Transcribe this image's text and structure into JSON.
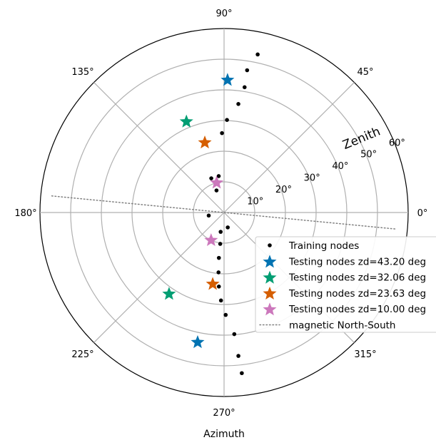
{
  "chart_data": {
    "type": "polar-scatter",
    "xlabel": "Azimuth",
    "radial_title": "Zenith",
    "radial_max": 60,
    "angular_ticks": [
      {
        "deg": 0,
        "label": "0°"
      },
      {
        "deg": 45,
        "label": "45°"
      },
      {
        "deg": 90,
        "label": "90°"
      },
      {
        "deg": 135,
        "label": "135°"
      },
      {
        "deg": 180,
        "label": "180°"
      },
      {
        "deg": 225,
        "label": "225°"
      },
      {
        "deg": 270,
        "label": "270°"
      },
      {
        "deg": 315,
        "label": "315°"
      }
    ],
    "radial_ticks": [
      {
        "value": 10,
        "label": "10°"
      },
      {
        "value": 20,
        "label": "20°"
      },
      {
        "value": 30,
        "label": "30°"
      },
      {
        "value": 40,
        "label": "40°"
      },
      {
        "value": 50,
        "label": "50°"
      },
      {
        "value": 60,
        "label": "60°"
      }
    ],
    "grid": true,
    "legend_position": "lower-right",
    "series": [
      {
        "name": "Training nodes",
        "marker": "dot",
        "color": "#000000",
        "points": [
          {
            "az": 283.9,
            "zd": 5.0
          },
          {
            "az": 260.0,
            "zd": 6.4
          },
          {
            "az": 263.0,
            "zd": 10.3
          },
          {
            "az": 263.5,
            "zd": 14.9
          },
          {
            "az": 264.7,
            "zd": 19.6
          },
          {
            "az": 266.0,
            "zd": 24.2
          },
          {
            "az": 268.0,
            "zd": 28.7
          },
          {
            "az": 270.9,
            "zd": 33.4
          },
          {
            "az": 274.8,
            "zd": 39.8
          },
          {
            "az": 275.7,
            "zd": 47.0
          },
          {
            "az": 276.3,
            "zd": 52.7
          },
          {
            "az": 78.0,
            "zd": 52.7
          },
          {
            "az": 80.8,
            "zd": 47.0
          },
          {
            "az": 80.7,
            "zd": 41.4
          },
          {
            "az": 82.5,
            "zd": 35.7
          },
          {
            "az": 88.2,
            "zd": 30.2
          },
          {
            "az": 91.5,
            "zd": 25.9
          },
          {
            "az": 98.4,
            "zd": 12.0
          },
          {
            "az": 108.9,
            "zd": 7.6
          },
          {
            "az": 110.5,
            "zd": 11.9
          },
          {
            "az": 191.2,
            "zd": 5.1
          }
        ]
      },
      {
        "name": "Testing nodes zd=43.20 deg",
        "marker": "star",
        "color": "#0173b2",
        "points": [
          {
            "az": 88.5,
            "zd": 43.2
          },
          {
            "az": 258.5,
            "zd": 43.2
          }
        ]
      },
      {
        "name": "Testing nodes zd=32.06 deg",
        "marker": "star",
        "color": "#029e73",
        "points": [
          {
            "az": 112.5,
            "zd": 32.06
          },
          {
            "az": 236.0,
            "zd": 32.06
          }
        ]
      },
      {
        "name": "Testing nodes zd=23.63 deg",
        "marker": "star",
        "color": "#d55e00",
        "points": [
          {
            "az": 105.4,
            "zd": 23.63
          },
          {
            "az": 261.0,
            "zd": 23.63
          }
        ]
      },
      {
        "name": "Testing nodes zd=10.00 deg",
        "marker": "star",
        "color": "#cc78bc",
        "points": [
          {
            "az": 104.0,
            "zd": 10.0
          },
          {
            "az": 245.0,
            "zd": 10.0
          }
        ]
      },
      {
        "name": "magnetic North-South",
        "marker": "dotted-line",
        "color": "#808080",
        "axis_angle_deg": 174.5
      }
    ]
  }
}
